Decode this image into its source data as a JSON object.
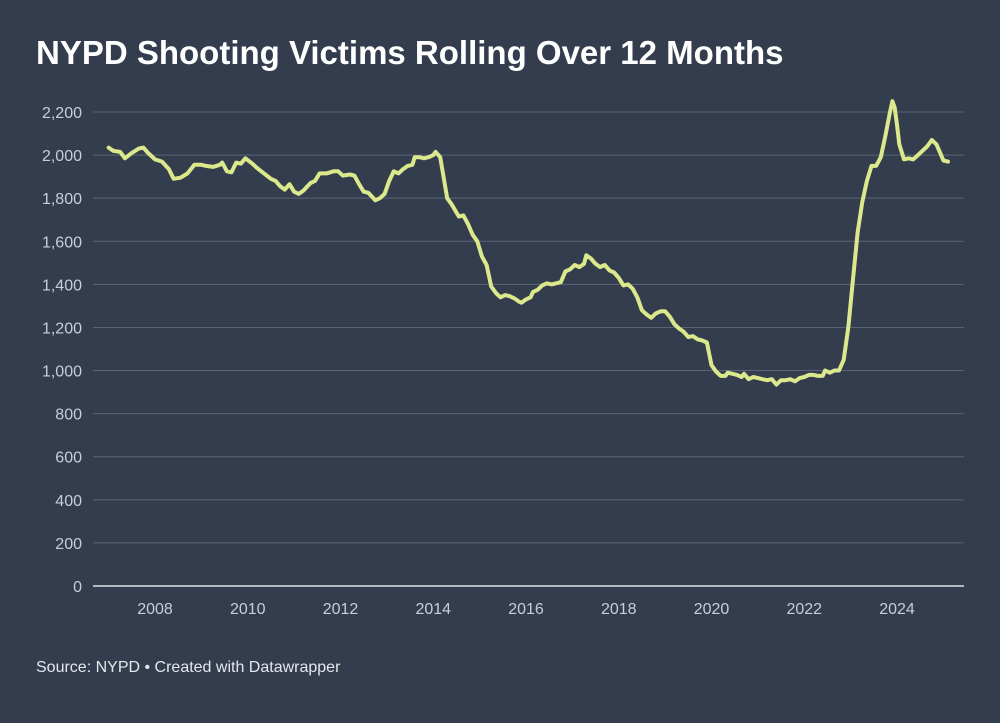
{
  "title": "NYPD Shooting Victims Rolling Over 12 Months",
  "source": "Source: NYPD • Created with Datawrapper",
  "colors": {
    "background": "#333d4e",
    "line": "#dbe98c",
    "grid": "#5a6474",
    "tick_text": "#c9ced6",
    "title": "#ffffff"
  },
  "chart_data": {
    "type": "line",
    "title": "NYPD Shooting Victims Rolling Over 12 Months",
    "xlabel": "",
    "ylabel": "",
    "xlim": [
      2006.9,
      2025.2
    ],
    "ylim": [
      0,
      2200
    ],
    "yticks": [
      0,
      200,
      400,
      600,
      800,
      1000,
      1200,
      1400,
      1600,
      1800,
      2000,
      2200
    ],
    "ytick_labels": [
      "0",
      "200",
      "400",
      "600",
      "800",
      "1,000",
      "1,200",
      "1,400",
      "1,600",
      "1,800",
      "2,000",
      "2,200"
    ],
    "xticks": [
      2008,
      2010,
      2012,
      2014,
      2016,
      2018,
      2020,
      2022,
      2024
    ],
    "xtick_labels": [
      "2008",
      "2010",
      "2012",
      "2014",
      "2016",
      "2018",
      "2020",
      "2022",
      "2024"
    ],
    "grid": true,
    "legend": "none",
    "series": [
      {
        "points": [
          [
            2007.0,
            2035
          ],
          [
            2007.1,
            2020
          ],
          [
            2007.25,
            2015
          ],
          [
            2007.35,
            1985
          ],
          [
            2007.5,
            2010
          ],
          [
            2007.65,
            2030
          ],
          [
            2007.75,
            2035
          ],
          [
            2007.85,
            2010
          ],
          [
            2008.0,
            1980
          ],
          [
            2008.15,
            1970
          ],
          [
            2008.3,
            1935
          ],
          [
            2008.4,
            1890
          ],
          [
            2008.55,
            1895
          ],
          [
            2008.7,
            1915
          ],
          [
            2008.85,
            1955
          ],
          [
            2009.0,
            1955
          ],
          [
            2009.1,
            1950
          ],
          [
            2009.25,
            1945
          ],
          [
            2009.4,
            1955
          ],
          [
            2009.45,
            1965
          ],
          [
            2009.55,
            1925
          ],
          [
            2009.65,
            1920
          ],
          [
            2009.75,
            1965
          ],
          [
            2009.85,
            1960
          ],
          [
            2009.95,
            1985
          ],
          [
            2010.1,
            1960
          ],
          [
            2010.2,
            1940
          ],
          [
            2010.35,
            1915
          ],
          [
            2010.5,
            1890
          ],
          [
            2010.6,
            1880
          ],
          [
            2010.7,
            1855
          ],
          [
            2010.8,
            1840
          ],
          [
            2010.9,
            1865
          ],
          [
            2011.0,
            1830
          ],
          [
            2011.1,
            1820
          ],
          [
            2011.2,
            1835
          ],
          [
            2011.35,
            1870
          ],
          [
            2011.45,
            1880
          ],
          [
            2011.55,
            1915
          ],
          [
            2011.7,
            1915
          ],
          [
            2011.85,
            1925
          ],
          [
            2011.95,
            1925
          ],
          [
            2012.05,
            1905
          ],
          [
            2012.2,
            1910
          ],
          [
            2012.3,
            1905
          ],
          [
            2012.4,
            1865
          ],
          [
            2012.5,
            1830
          ],
          [
            2012.6,
            1825
          ],
          [
            2012.75,
            1790
          ],
          [
            2012.85,
            1800
          ],
          [
            2012.95,
            1820
          ],
          [
            2013.05,
            1880
          ],
          [
            2013.15,
            1925
          ],
          [
            2013.25,
            1915
          ],
          [
            2013.35,
            1935
          ],
          [
            2013.45,
            1950
          ],
          [
            2013.55,
            1955
          ],
          [
            2013.6,
            1990
          ],
          [
            2013.7,
            1990
          ],
          [
            2013.8,
            1985
          ],
          [
            2013.9,
            1990
          ],
          [
            2014.0,
            2000
          ],
          [
            2014.05,
            2015
          ],
          [
            2014.15,
            1990
          ],
          [
            2014.3,
            1800
          ],
          [
            2014.4,
            1770
          ],
          [
            2014.55,
            1715
          ],
          [
            2014.65,
            1720
          ],
          [
            2014.75,
            1680
          ],
          [
            2014.85,
            1630
          ],
          [
            2014.95,
            1600
          ],
          [
            2015.05,
            1530
          ],
          [
            2015.15,
            1490
          ],
          [
            2015.25,
            1390
          ],
          [
            2015.35,
            1360
          ],
          [
            2015.45,
            1340
          ],
          [
            2015.55,
            1350
          ],
          [
            2015.65,
            1345
          ],
          [
            2015.75,
            1335
          ],
          [
            2015.85,
            1320
          ],
          [
            2015.9,
            1315
          ],
          [
            2016.0,
            1330
          ],
          [
            2016.1,
            1340
          ],
          [
            2016.15,
            1365
          ],
          [
            2016.25,
            1375
          ],
          [
            2016.35,
            1395
          ],
          [
            2016.45,
            1405
          ],
          [
            2016.55,
            1400
          ],
          [
            2016.65,
            1405
          ],
          [
            2016.75,
            1410
          ],
          [
            2016.85,
            1460
          ],
          [
            2016.95,
            1470
          ],
          [
            2017.05,
            1490
          ],
          [
            2017.15,
            1480
          ],
          [
            2017.25,
            1495
          ],
          [
            2017.3,
            1535
          ],
          [
            2017.4,
            1520
          ],
          [
            2017.5,
            1495
          ],
          [
            2017.6,
            1480
          ],
          [
            2017.7,
            1490
          ],
          [
            2017.8,
            1465
          ],
          [
            2017.9,
            1455
          ],
          [
            2018.0,
            1430
          ],
          [
            2018.1,
            1395
          ],
          [
            2018.2,
            1400
          ],
          [
            2018.3,
            1380
          ],
          [
            2018.4,
            1340
          ],
          [
            2018.5,
            1280
          ],
          [
            2018.6,
            1260
          ],
          [
            2018.7,
            1245
          ],
          [
            2018.8,
            1265
          ],
          [
            2018.9,
            1275
          ],
          [
            2019.0,
            1275
          ],
          [
            2019.1,
            1250
          ],
          [
            2019.2,
            1215
          ],
          [
            2019.3,
            1195
          ],
          [
            2019.4,
            1180
          ],
          [
            2019.5,
            1155
          ],
          [
            2019.6,
            1160
          ],
          [
            2019.7,
            1145
          ],
          [
            2019.8,
            1140
          ],
          [
            2019.9,
            1130
          ],
          [
            2020.0,
            1025
          ],
          [
            2020.1,
            995
          ],
          [
            2020.2,
            975
          ],
          [
            2020.3,
            975
          ],
          [
            2020.35,
            990
          ],
          [
            2020.45,
            985
          ],
          [
            2020.55,
            980
          ],
          [
            2020.65,
            970
          ],
          [
            2020.7,
            985
          ],
          [
            2020.8,
            960
          ],
          [
            2020.9,
            970
          ],
          [
            2021.0,
            965
          ],
          [
            2021.1,
            960
          ],
          [
            2021.2,
            955
          ],
          [
            2021.3,
            960
          ],
          [
            2021.4,
            935
          ],
          [
            2021.5,
            955
          ],
          [
            2021.6,
            955
          ],
          [
            2021.7,
            960
          ],
          [
            2021.8,
            950
          ],
          [
            2021.9,
            965
          ],
          [
            2022.0,
            970
          ],
          [
            2022.1,
            980
          ],
          [
            2022.2,
            980
          ],
          [
            2022.3,
            975
          ],
          [
            2022.4,
            975
          ],
          [
            2022.45,
            1000
          ],
          [
            2022.55,
            990
          ],
          [
            2022.65,
            1000
          ],
          [
            2022.75,
            1000
          ],
          [
            2022.85,
            1050
          ],
          [
            2022.95,
            1200
          ],
          [
            2023.05,
            1420
          ],
          [
            2023.15,
            1640
          ],
          [
            2023.25,
            1780
          ],
          [
            2023.35,
            1880
          ],
          [
            2023.45,
            1950
          ],
          [
            2023.55,
            1950
          ],
          [
            2023.65,
            1990
          ],
          [
            2023.75,
            2090
          ],
          [
            2023.85,
            2200
          ],
          [
            2023.9,
            2250
          ],
          [
            2023.95,
            2220
          ],
          [
            2024.0,
            2140
          ],
          [
            2024.05,
            2050
          ],
          [
            2024.15,
            1980
          ],
          [
            2024.25,
            1985
          ],
          [
            2024.35,
            1980
          ],
          [
            2024.45,
            2000
          ],
          [
            2024.55,
            2020
          ],
          [
            2024.65,
            2040
          ],
          [
            2024.75,
            2070
          ],
          [
            2024.85,
            2050
          ],
          [
            2024.95,
            2000
          ],
          [
            2025.0,
            1975
          ],
          [
            2025.1,
            1970
          ]
        ]
      }
    ]
  }
}
